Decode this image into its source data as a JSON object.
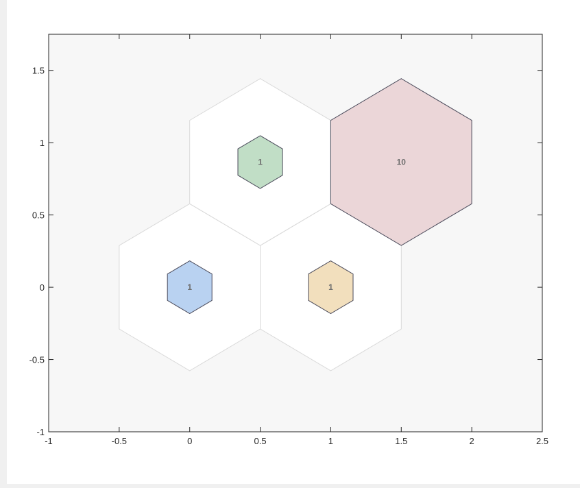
{
  "chart_data": {
    "type": "hexbin",
    "title": "",
    "xlabel": "",
    "ylabel": "",
    "xlim": [
      -1,
      2.5
    ],
    "ylim": [
      -1,
      1.75
    ],
    "xticks": [
      -1,
      -0.5,
      0,
      0.5,
      1,
      1.5,
      2,
      2.5
    ],
    "xtick_labels": [
      "-1",
      "-0.5",
      "0",
      "0.5",
      "1",
      "1.5",
      "2",
      "2.5"
    ],
    "yticks": [
      -1,
      -0.5,
      0,
      0.5,
      1,
      1.5
    ],
    "ytick_labels": [
      "-1",
      "-0.5",
      "0",
      "0.5",
      "1",
      "1.5"
    ],
    "hex_radius": 0.57735,
    "grid": false,
    "background_color": "#f7f7f7",
    "empty_cells": [
      {
        "x": 0,
        "y": 0
      },
      {
        "x": 1,
        "y": 0
      },
      {
        "x": 0.5,
        "y": 0.866
      }
    ],
    "cells": [
      {
        "x": 0,
        "y": 0,
        "count": 1,
        "label": "1",
        "color": "#b9d2f1"
      },
      {
        "x": 1,
        "y": 0,
        "count": 1,
        "label": "1",
        "color": "#f2dfbd"
      },
      {
        "x": 0.5,
        "y": 0.866,
        "count": 1,
        "label": "1",
        "color": "#c1dec6"
      },
      {
        "x": 1.5,
        "y": 0.866,
        "count": 10,
        "label": "10",
        "color": "#ebd6d8"
      }
    ]
  }
}
